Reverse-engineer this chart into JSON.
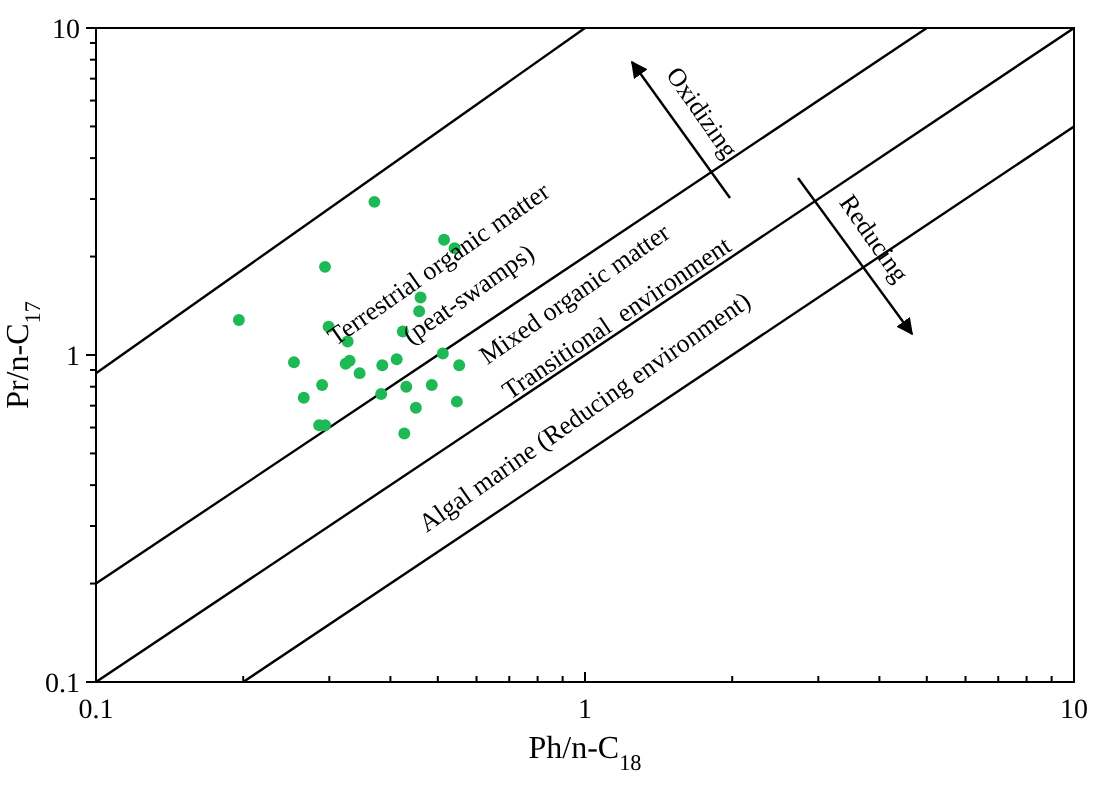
{
  "chart_data": {
    "type": "scatter",
    "xlabel": "Ph/n-C$_{18}$",
    "ylabel": "Pr/n-C$_{17}$",
    "log": "xy",
    "grid": false,
    "legend": false,
    "xlim": [
      0.1,
      10
    ],
    "ylim": [
      0.1,
      10
    ],
    "xticks": [
      0.1,
      {
        "value": 0.2,
        "label": null
      },
      {
        "value": 0.3,
        "label": null
      },
      {
        "value": 0.4,
        "label": null
      },
      {
        "value": 0.5,
        "label": null
      },
      {
        "value": 0.6,
        "label": null
      },
      {
        "value": 0.7,
        "label": null
      },
      {
        "value": 0.8,
        "label": null
      },
      {
        "value": 0.9,
        "label": null
      },
      1,
      {
        "value": 2,
        "label": null
      },
      {
        "value": 3,
        "label": null
      },
      {
        "value": 4,
        "label": null
      },
      {
        "value": 5,
        "label": null
      },
      {
        "value": 6,
        "label": null
      },
      {
        "value": 7,
        "label": null
      },
      {
        "value": 8,
        "label": null
      },
      {
        "value": 9,
        "label": null
      },
      10
    ],
    "yticks": [
      0.1,
      {
        "value": 0.2,
        "label": null
      },
      {
        "value": 0.3,
        "label": null
      },
      {
        "value": 0.4,
        "label": null
      },
      {
        "value": 0.5,
        "label": null
      },
      {
        "value": 0.6,
        "label": null
      },
      {
        "value": 0.7,
        "label": null
      },
      {
        "value": 0.8,
        "label": null
      },
      {
        "value": 0.9,
        "label": null
      },
      1,
      {
        "value": 2,
        "label": null
      },
      {
        "value": 3,
        "label": null
      },
      {
        "value": 4,
        "label": null
      },
      {
        "value": 5,
        "label": null
      },
      {
        "value": 6,
        "label": null
      },
      {
        "value": 7,
        "label": null
      },
      {
        "value": 8,
        "label": null
      },
      {
        "value": 9,
        "label": null
      },
      10
    ],
    "series": [
      {
        "type": "line",
        "marker": "none",
        "color": "#000000",
        "x": [
          0.1,
          1
        ],
        "values": [
          0.88,
          10
        ]
      },
      {
        "type": "line",
        "marker": "none",
        "color": "#000000",
        "x": [
          0.1,
          5
        ],
        "values": [
          0.2,
          10
        ]
      },
      {
        "type": "line",
        "marker": "none",
        "color": "#000000",
        "x": [
          0.1,
          10
        ],
        "values": [
          0.1,
          10
        ]
      },
      {
        "type": "line",
        "marker": "none",
        "color": "#000000",
        "x": [
          0.2,
          10
        ],
        "values": [
          0.1,
          5
        ]
      },
      {
        "marker": "circle",
        "color": "#1db954",
        "x": [
          0.196,
          0.371,
          0.515,
          0.541,
          0.294,
          0.461,
          0.458,
          0.299,
          0.424,
          0.327,
          0.254,
          0.324,
          0.33,
          0.346,
          0.385,
          0.412,
          0.512,
          0.553,
          0.29,
          0.431,
          0.486,
          0.266,
          0.383,
          0.451,
          0.547,
          0.286,
          0.294,
          0.427
        ],
        "values": [
          1.28,
          2.94,
          2.25,
          2.12,
          1.86,
          1.5,
          1.36,
          1.22,
          1.18,
          1.1,
          0.95,
          0.94,
          0.96,
          0.88,
          0.93,
          0.97,
          1.01,
          0.93,
          0.81,
          0.8,
          0.81,
          0.74,
          0.76,
          0.69,
          0.72,
          0.61,
          0.61,
          0.575
        ]
      }
    ],
    "annotations": [
      "Terrestrial organic matter",
      "(peat-swamps)",
      "Mixed organic matter",
      "Transitional  environment",
      "Algal marine (Reducing environment)",
      "Oxidizing",
      "Reducing"
    ]
  }
}
